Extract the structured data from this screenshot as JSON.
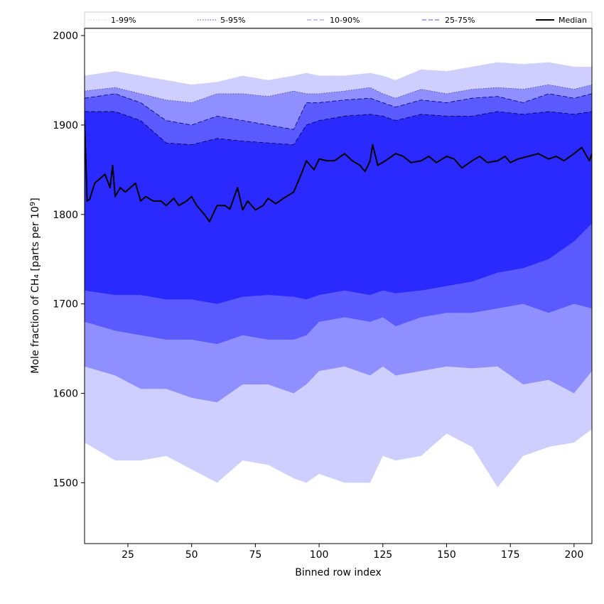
{
  "chart_data": {
    "type": "area",
    "title": "",
    "xlabel": "Binned row index",
    "ylabel_main": "Mole fraction of CH₄ [parts per 10",
    "ylabel_sup": "9",
    "ylabel_close": "]",
    "xlim": [
      8,
      207
    ],
    "ylim": [
      1432,
      2008
    ],
    "x_ticks": [
      25,
      50,
      75,
      100,
      125,
      150,
      175,
      200
    ],
    "y_ticks": [
      1500,
      1600,
      1700,
      1800,
      1900,
      2000
    ],
    "grid": false,
    "legend_position": "top",
    "x": [
      8,
      20,
      30,
      40,
      50,
      60,
      70,
      80,
      90,
      95,
      100,
      110,
      120,
      125,
      130,
      140,
      150,
      160,
      170,
      180,
      190,
      200,
      207
    ],
    "bands": [
      {
        "name": "1-99%",
        "color": "#cfcfff",
        "line_color": "#c8c8e6",
        "line_style": "dotted",
        "upper": [
          1955,
          1960,
          1955,
          1950,
          1945,
          1948,
          1955,
          1950,
          1955,
          1958,
          1955,
          1955,
          1958,
          1955,
          1950,
          1962,
          1960,
          1965,
          1970,
          1968,
          1970,
          1965,
          1965
        ],
        "lower": [
          1545,
          1525,
          1525,
          1530,
          1515,
          1500,
          1525,
          1520,
          1505,
          1500,
          1510,
          1500,
          1500,
          1530,
          1525,
          1530,
          1555,
          1540,
          1495,
          1530,
          1540,
          1545,
          1560
        ]
      },
      {
        "name": "5-95%",
        "color": "#8f8fff",
        "line_color": "#4444aa",
        "line_style": "dotted",
        "upper": [
          1938,
          1942,
          1935,
          1928,
          1925,
          1935,
          1935,
          1932,
          1938,
          1935,
          1935,
          1938,
          1942,
          1935,
          1930,
          1940,
          1935,
          1940,
          1942,
          1940,
          1945,
          1940,
          1945
        ],
        "lower": [
          1630,
          1620,
          1605,
          1605,
          1595,
          1590,
          1610,
          1610,
          1600,
          1610,
          1625,
          1630,
          1620,
          1630,
          1620,
          1625,
          1630,
          1628,
          1630,
          1610,
          1615,
          1600,
          1625
        ]
      },
      {
        "name": "10-90%",
        "color": "#5a5aff",
        "line_color": "#000066",
        "line_style": "dashed",
        "upper": [
          1930,
          1935,
          1925,
          1905,
          1900,
          1910,
          1905,
          1900,
          1895,
          1925,
          1925,
          1928,
          1930,
          1925,
          1920,
          1928,
          1925,
          1930,
          1932,
          1925,
          1935,
          1930,
          1935
        ],
        "lower": [
          1680,
          1670,
          1665,
          1660,
          1660,
          1655,
          1665,
          1660,
          1660,
          1665,
          1680,
          1685,
          1680,
          1685,
          1675,
          1685,
          1690,
          1690,
          1695,
          1700,
          1690,
          1700,
          1695
        ]
      },
      {
        "name": "25-75%",
        "color": "#2a2aff",
        "line_color": "#000044",
        "line_style": "dashed",
        "upper": [
          1915,
          1915,
          1905,
          1880,
          1878,
          1885,
          1882,
          1880,
          1878,
          1900,
          1905,
          1910,
          1912,
          1910,
          1905,
          1912,
          1910,
          1910,
          1915,
          1912,
          1915,
          1912,
          1915
        ],
        "lower": [
          1715,
          1710,
          1710,
          1705,
          1705,
          1700,
          1708,
          1710,
          1708,
          1705,
          1710,
          1715,
          1710,
          1715,
          1712,
          1715,
          1720,
          1725,
          1735,
          1740,
          1750,
          1770,
          1790
        ]
      }
    ],
    "median": {
      "name": "Median",
      "color": "#000000",
      "x": [
        8,
        9,
        10,
        12,
        14,
        16,
        18,
        19,
        20,
        22,
        24,
        26,
        28,
        30,
        32,
        35,
        38,
        40,
        43,
        45,
        48,
        50,
        52,
        55,
        57,
        60,
        63,
        65,
        68,
        70,
        72,
        75,
        78,
        80,
        83,
        86,
        90,
        93,
        95,
        98,
        100,
        103,
        106,
        110,
        113,
        116,
        118,
        120,
        121,
        123,
        126,
        130,
        133,
        136,
        140,
        143,
        146,
        150,
        153,
        156,
        160,
        163,
        166,
        170,
        173,
        175,
        178,
        182,
        186,
        190,
        193,
        196,
        200,
        203,
        206,
        207
      ],
      "values": [
        1905,
        1815,
        1817,
        1835,
        1840,
        1845,
        1830,
        1855,
        1820,
        1830,
        1825,
        1830,
        1835,
        1815,
        1820,
        1815,
        1815,
        1810,
        1818,
        1810,
        1815,
        1820,
        1810,
        1800,
        1792,
        1810,
        1810,
        1806,
        1830,
        1805,
        1815,
        1805,
        1810,
        1818,
        1812,
        1818,
        1825,
        1845,
        1860,
        1850,
        1862,
        1860,
        1860,
        1868,
        1860,
        1855,
        1848,
        1860,
        1878,
        1855,
        1860,
        1868,
        1865,
        1858,
        1860,
        1865,
        1858,
        1865,
        1862,
        1852,
        1860,
        1865,
        1858,
        1860,
        1865,
        1858,
        1862,
        1865,
        1868,
        1862,
        1865,
        1860,
        1868,
        1875,
        1860,
        1868
      ]
    }
  }
}
